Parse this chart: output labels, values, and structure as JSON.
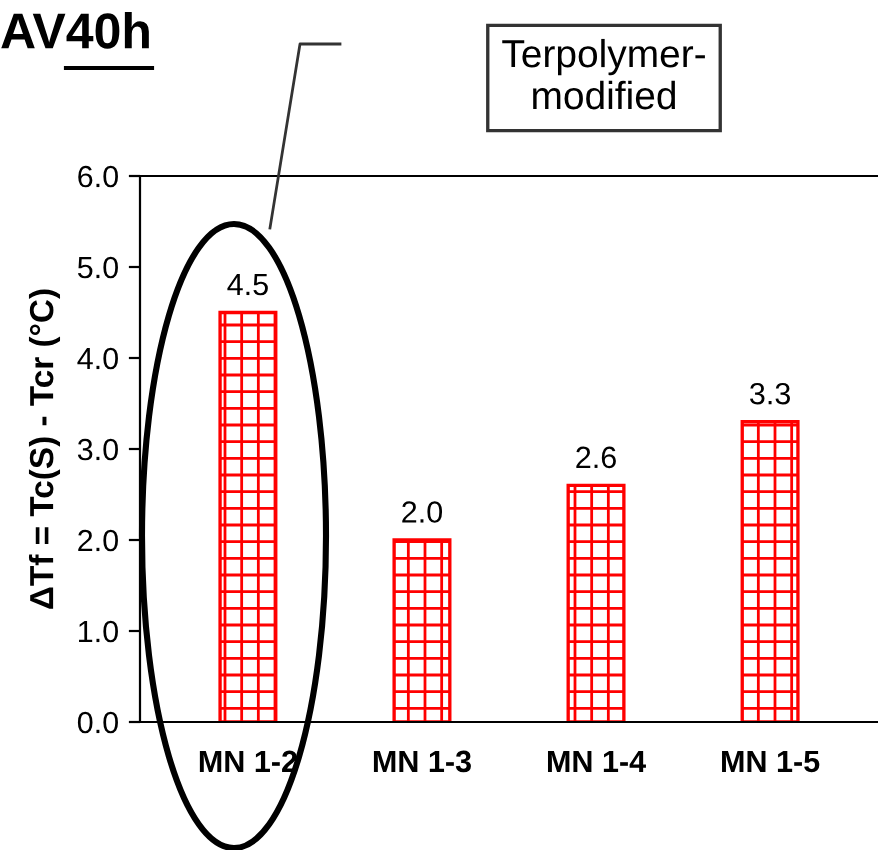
{
  "chart_data": {
    "type": "bar",
    "title": "AV40h",
    "ylabel": "ΔTf = Tc(S) - Tcr (°C)",
    "categories": [
      "MN 1-2",
      "MN 1-3",
      "MN 1-4",
      "MN 1-5"
    ],
    "values": [
      4.5,
      2.0,
      2.6,
      3.3
    ],
    "color": "#ff0000",
    "ylim": [
      0,
      6
    ],
    "yticks": [
      {
        "value": 0,
        "label": "0.0"
      },
      {
        "value": 1,
        "label": "1.0"
      },
      {
        "value": 2,
        "label": "2.0"
      },
      {
        "value": 3,
        "label": "3.0"
      },
      {
        "value": 4,
        "label": "4.0"
      },
      {
        "value": 5,
        "label": "5.0"
      },
      {
        "value": 6,
        "label": "6.0"
      }
    ],
    "value_labels": [
      "4.5",
      "2.0",
      "2.6",
      "3.3"
    ],
    "grid": false,
    "annotations": [
      "Terpolymer-\nmodified"
    ]
  }
}
